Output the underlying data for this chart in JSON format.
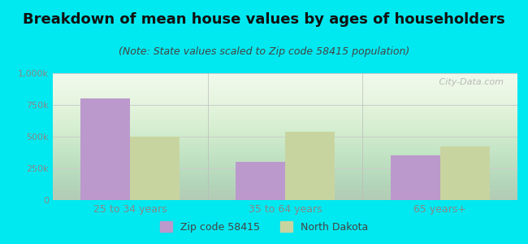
{
  "title": "Breakdown of mean house values by ages of householders",
  "subtitle": "(Note: State values scaled to Zip code 58415 population)",
  "categories": [
    "25 to 34 years",
    "35 to 64 years",
    "65 years+"
  ],
  "zip_values": [
    800000,
    300000,
    350000
  ],
  "state_values": [
    500000,
    540000,
    420000
  ],
  "zip_color": "#bb99cc",
  "state_color": "#c8d4a0",
  "background_outer": "#00e8f0",
  "background_inner_top": "#f5faf0",
  "background_inner_bottom": "#d8f0cc",
  "ylim": [
    0,
    1000000
  ],
  "yticks": [
    0,
    250000,
    500000,
    750000,
    1000000
  ],
  "ytick_labels": [
    "0",
    "250k",
    "500k",
    "750k",
    "1,000k"
  ],
  "legend_zip_label": "Zip code 58415",
  "legend_state_label": "North Dakota",
  "title_fontsize": 13,
  "subtitle_fontsize": 9,
  "bar_width": 0.32,
  "watermark": " City-Data.com",
  "title_color": "#111111",
  "subtitle_color": "#444444",
  "tick_color": "#888888",
  "grid_color": "#cccccc",
  "legend_text_color": "#444444"
}
